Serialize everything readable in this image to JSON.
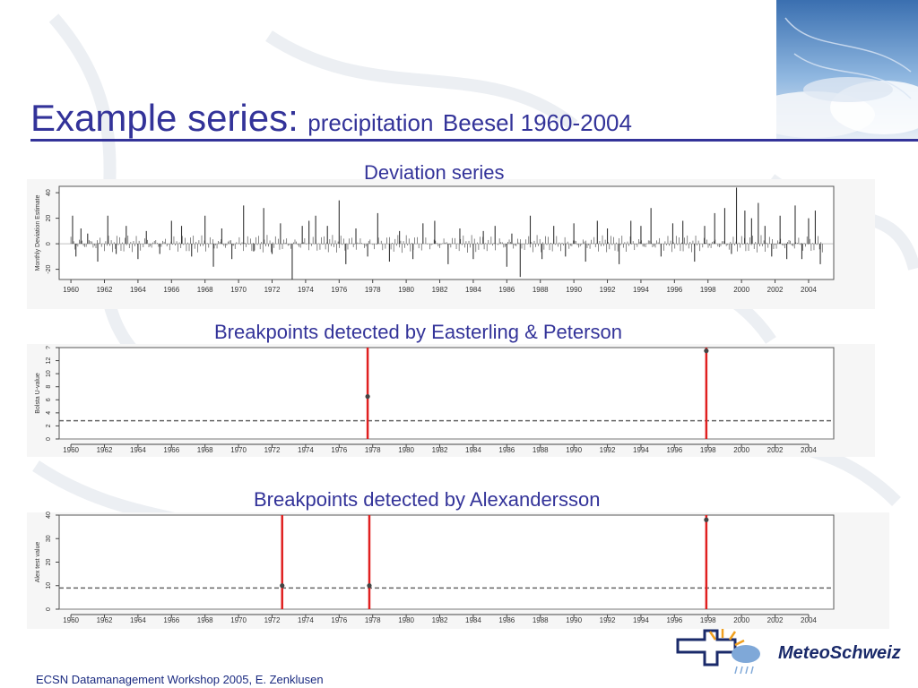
{
  "slide": {
    "title_main": "Example series:",
    "title_sub": "precipitation",
    "title_station": "Beesel 1960-2004",
    "footer": "ECSN Datamanagement Workshop 2005, E. Zenklusen",
    "logo_text": "MeteoSchweiz",
    "accent_color": "#333399",
    "breakpoint_color": "#e02020"
  },
  "chart_data": [
    {
      "type": "bar",
      "section_label": "Deviation series",
      "ylabel": "Monthly Deviation Estimate",
      "ylim": [
        -28,
        45
      ],
      "yticks": [
        -20,
        0,
        20,
        40
      ],
      "xlim": [
        1959.3,
        2005.5
      ],
      "xticks": [
        1960,
        1962,
        1964,
        1966,
        1968,
        1970,
        1972,
        1974,
        1976,
        1978,
        1980,
        1982,
        1984,
        1986,
        1988,
        1990,
        1992,
        1994,
        1996,
        1998,
        2000,
        2002,
        2004
      ],
      "x": [
        1960.1,
        1960.3,
        1960.6,
        1961.0,
        1961.6,
        1962.2,
        1962.7,
        1963.3,
        1964.0,
        1964.5,
        1965.3,
        1966.0,
        1966.6,
        1967.2,
        1968.0,
        1968.5,
        1969.0,
        1969.6,
        1970.3,
        1970.9,
        1971.5,
        1972.0,
        1972.5,
        1973.2,
        1973.8,
        1974.2,
        1974.6,
        1975.3,
        1976.0,
        1976.4,
        1977.0,
        1977.7,
        1978.3,
        1979.0,
        1979.6,
        1980.4,
        1981.0,
        1981.7,
        1982.5,
        1983.2,
        1984.0,
        1984.6,
        1985.3,
        1986.0,
        1986.3,
        1986.8,
        1987.4,
        1988.1,
        1988.8,
        1989.5,
        1990.0,
        1990.7,
        1991.4,
        1992.0,
        1992.7,
        1993.4,
        1994.0,
        1994.6,
        1995.2,
        1995.9,
        1996.5,
        1997.2,
        1997.8,
        1998.4,
        1999.0,
        1999.4,
        1999.7,
        2000.2,
        2000.6,
        2001.0,
        2001.4,
        2001.8,
        2002.3,
        2002.7,
        2003.2,
        2003.6,
        2004.0,
        2004.4,
        2004.7
      ],
      "values": [
        22,
        -10,
        12,
        8,
        -14,
        22,
        -8,
        14,
        -12,
        10,
        -8,
        18,
        14,
        -10,
        22,
        -18,
        12,
        -12,
        30,
        -6,
        28,
        -8,
        16,
        -28,
        14,
        18,
        22,
        14,
        34,
        -16,
        12,
        -10,
        24,
        -14,
        10,
        -12,
        16,
        18,
        -16,
        12,
        -12,
        10,
        14,
        -18,
        8,
        -26,
        22,
        -12,
        14,
        -10,
        16,
        -14,
        18,
        12,
        -16,
        18,
        14,
        28,
        -10,
        16,
        18,
        -14,
        14,
        24,
        28,
        -8,
        44,
        26,
        20,
        32,
        14,
        -10,
        22,
        -12,
        30,
        -12,
        20,
        26,
        -16
      ]
    },
    {
      "type": "line",
      "section_label": "Breakpoints detected by Easterling & Peterson",
      "ylabel": "Bolsta U-value",
      "ylim": [
        0,
        14
      ],
      "yticks": [
        0,
        2,
        4,
        6,
        8,
        10,
        12,
        14
      ],
      "ytick_labels": [
        "0",
        "2",
        "4",
        "6",
        "8",
        "10",
        "12",
        "?"
      ],
      "xlim": [
        1959.3,
        2005.5
      ],
      "xticks": [
        1960,
        1962,
        1964,
        1966,
        1968,
        1970,
        1972,
        1974,
        1976,
        1978,
        1980,
        1982,
        1984,
        1986,
        1988,
        1990,
        1992,
        1994,
        1996,
        1998,
        2000,
        2002,
        2004
      ],
      "threshold": 2.8,
      "breakpoints": [
        {
          "year": 1977.7,
          "value": 6.5
        },
        {
          "year": 1997.9,
          "value": 13.5
        }
      ]
    },
    {
      "type": "line",
      "section_label": "Breakpoints detected by Alexandersson",
      "ylabel": "Alex test value",
      "ylim": [
        0,
        40
      ],
      "yticks": [
        0,
        10,
        20,
        30,
        40
      ],
      "xlim": [
        1959.3,
        2005.5
      ],
      "xticks": [
        1960,
        1962,
        1964,
        1966,
        1968,
        1970,
        1972,
        1974,
        1976,
        1978,
        1980,
        1982,
        1984,
        1986,
        1988,
        1990,
        1992,
        1994,
        1996,
        1998,
        2000,
        2002,
        2004
      ],
      "threshold": 9,
      "breakpoints": [
        {
          "year": 1972.6,
          "value": 10
        },
        {
          "year": 1977.8,
          "value": 10
        },
        {
          "year": 1997.9,
          "value": 38
        }
      ]
    }
  ]
}
